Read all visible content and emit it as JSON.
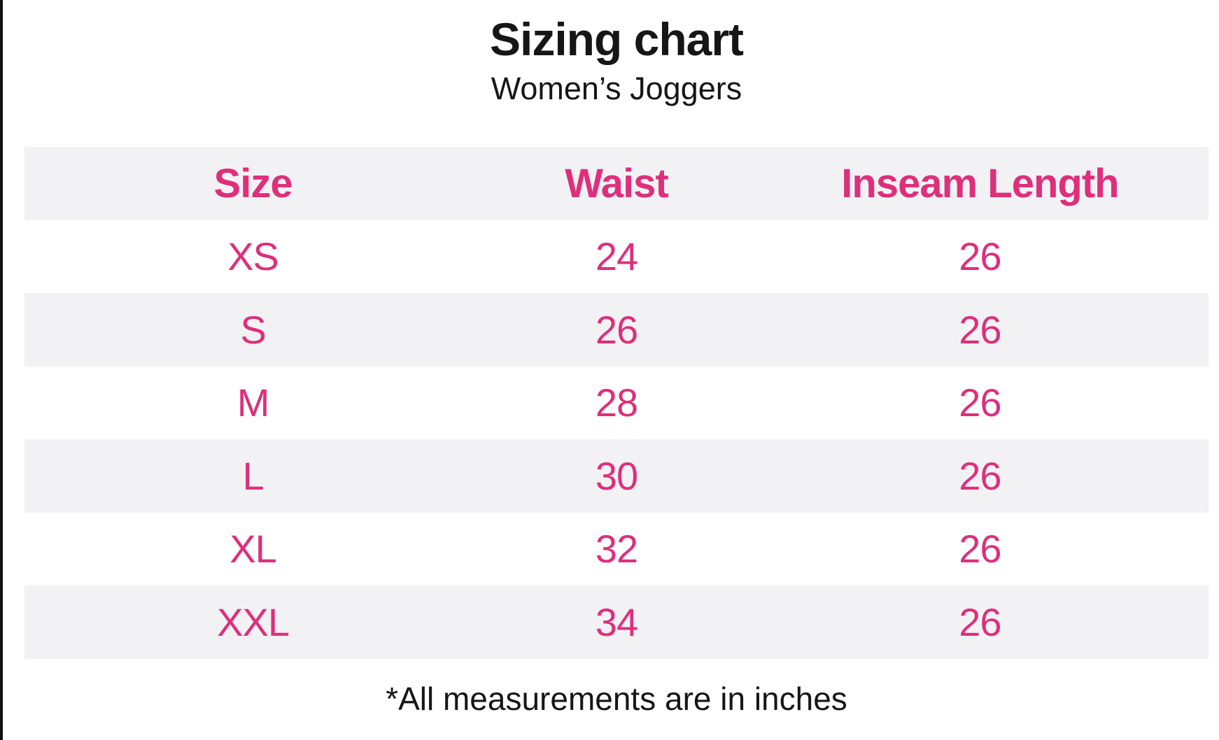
{
  "colors": {
    "pink": "#de2f7b",
    "stripe": "#f2f2f4",
    "text": "#161616",
    "border": "#101010"
  },
  "chart_data": {
    "type": "table",
    "title": "Sizing chart",
    "subtitle": "Women’s Joggers",
    "columns": [
      "Size",
      "Waist",
      "Inseam Length"
    ],
    "rows": [
      {
        "size": "XS",
        "waist": "24",
        "inseam_length": "26"
      },
      {
        "size": "S",
        "waist": "26",
        "inseam_length": "26"
      },
      {
        "size": "M",
        "waist": "28",
        "inseam_length": "26"
      },
      {
        "size": "L",
        "waist": "30",
        "inseam_length": "26"
      },
      {
        "size": "XL",
        "waist": "32",
        "inseam_length": "26"
      },
      {
        "size": "XXL",
        "waist": "34",
        "inseam_length": "26"
      }
    ],
    "footnote": "*All measurements are in inches",
    "layout_hints": {
      "header_band": true,
      "zebra_striping": "header and every second data row shaded",
      "alignment": "all cells centered"
    }
  }
}
